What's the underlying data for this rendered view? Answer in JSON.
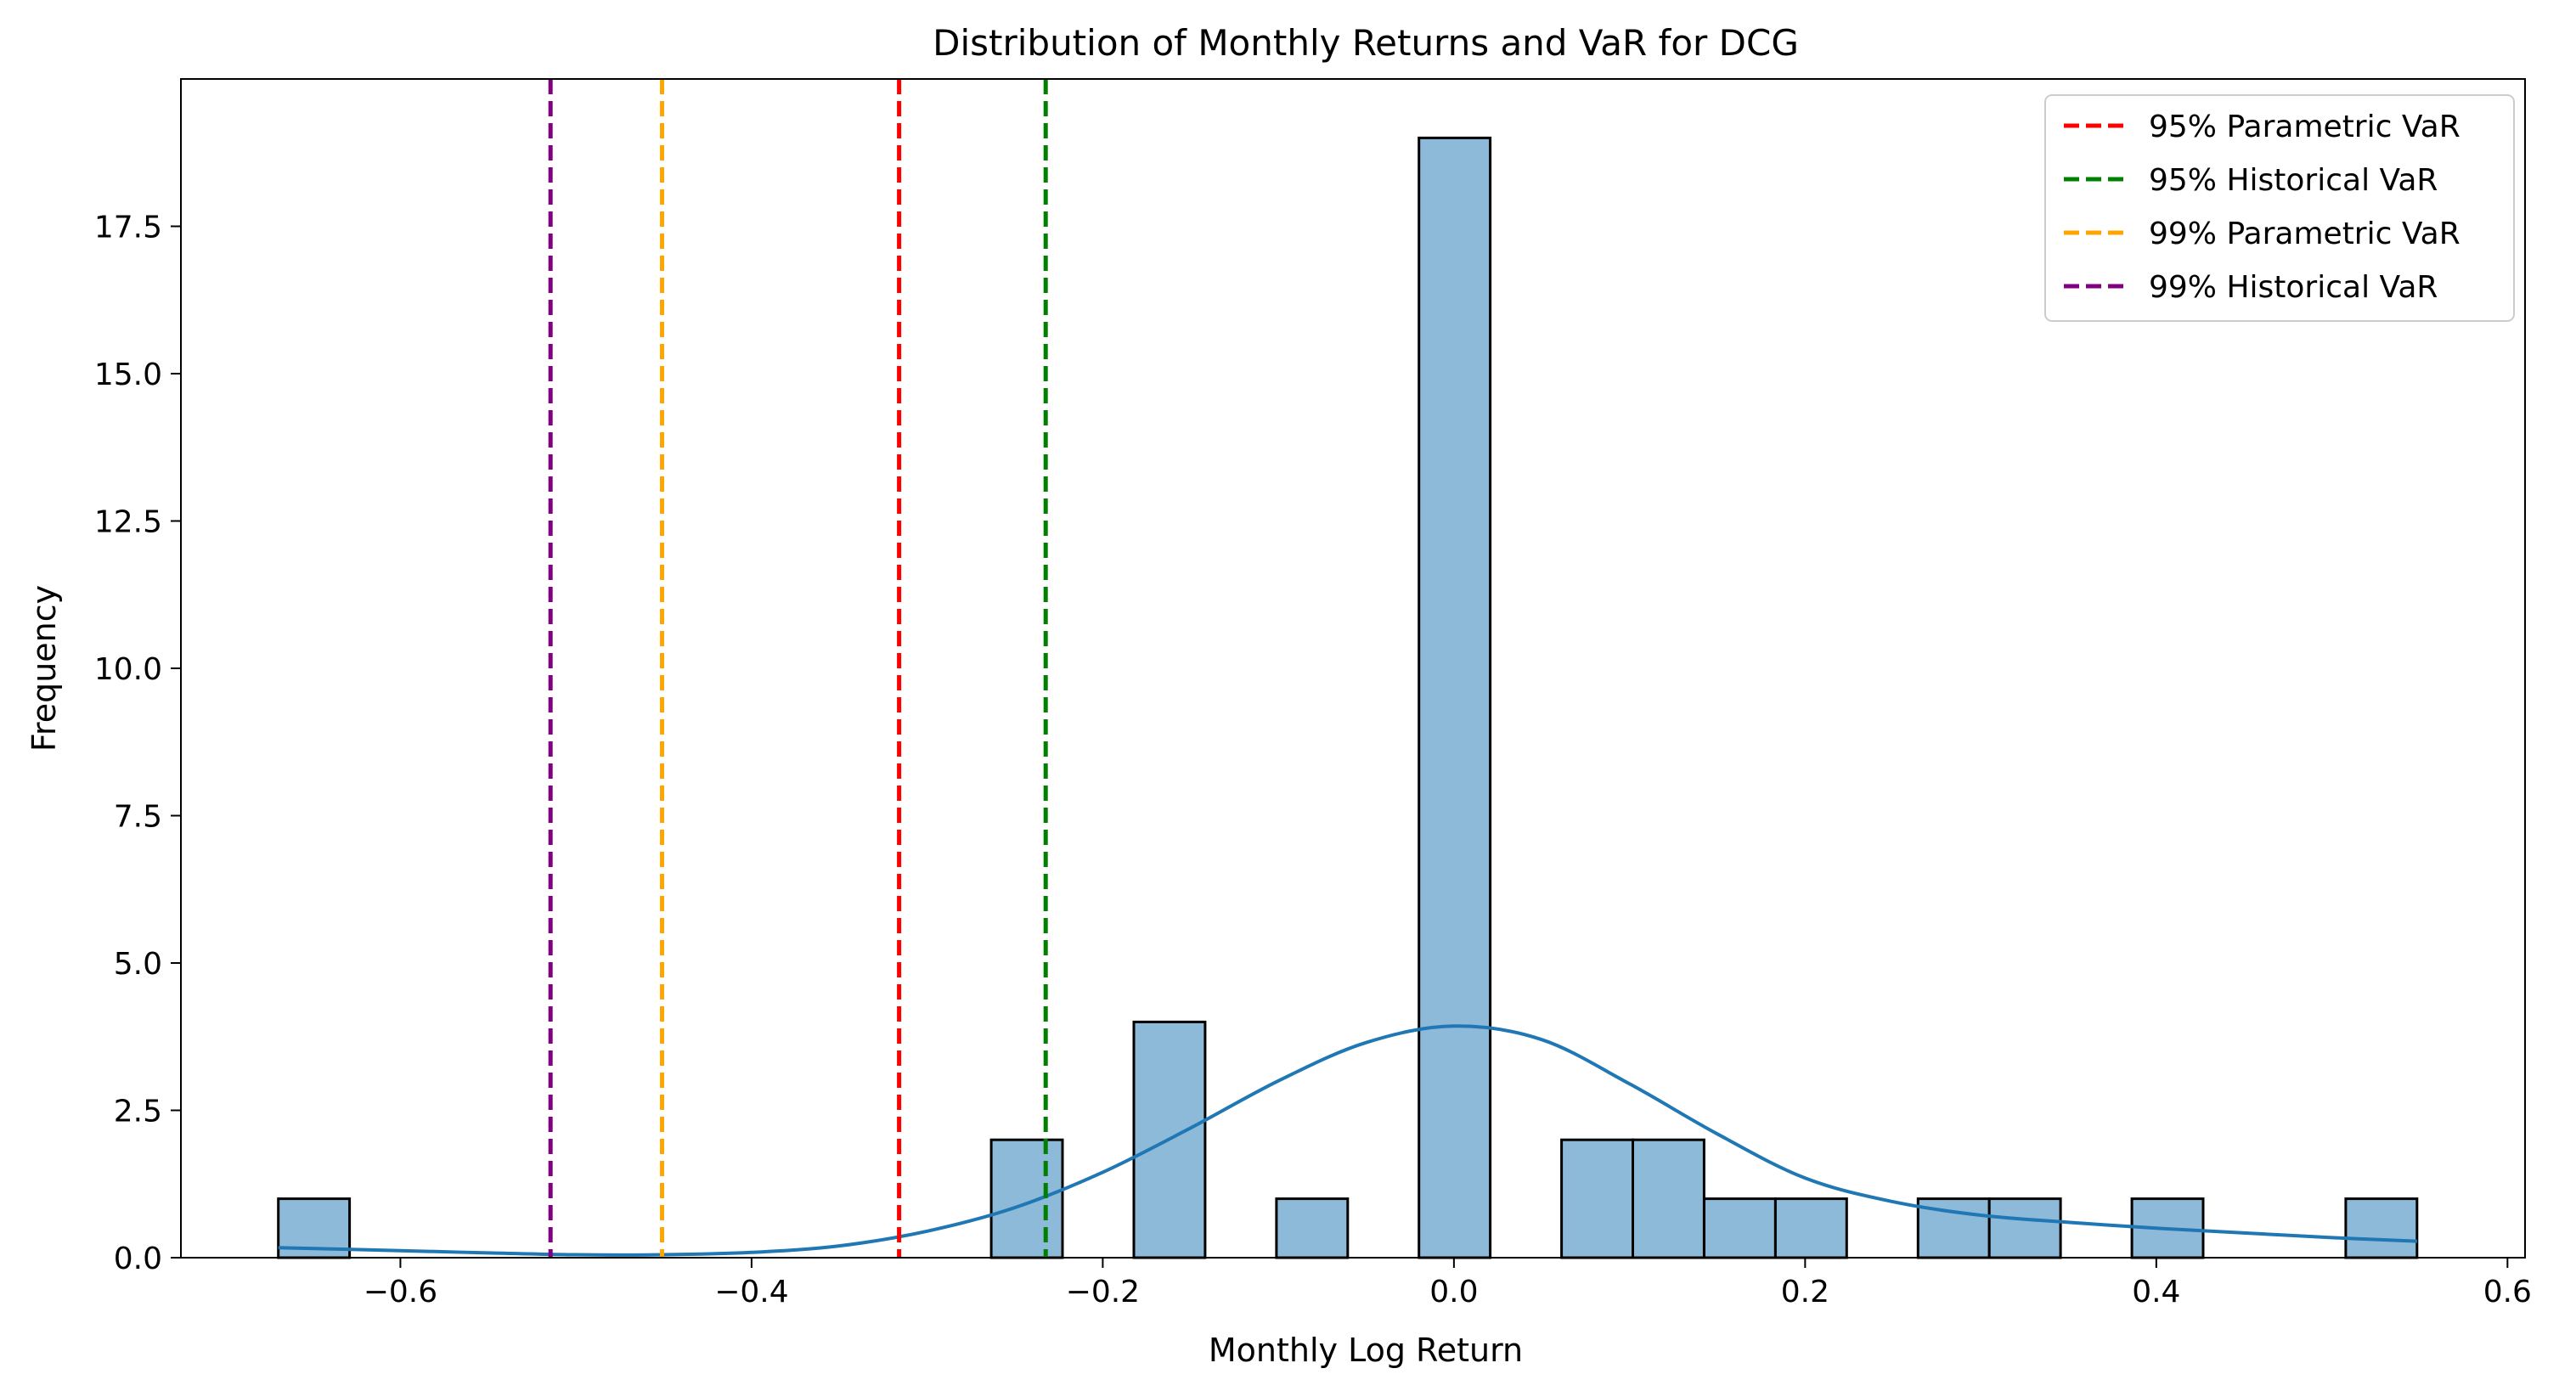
{
  "chart_data": {
    "type": "bar",
    "title": "Distribution of Monthly Returns and VaR for DCG",
    "xlabel": "Monthly Log Return",
    "ylabel": "Frequency",
    "xlim": [
      -0.725,
      0.61
    ],
    "ylim": [
      0,
      20.0
    ],
    "x_ticks": [
      {
        "value": -0.6,
        "label": "−0.6"
      },
      {
        "value": -0.4,
        "label": "−0.4"
      },
      {
        "value": -0.2,
        "label": "−0.2"
      },
      {
        "value": 0.0,
        "label": "0.0"
      },
      {
        "value": 0.2,
        "label": "0.2"
      },
      {
        "value": 0.4,
        "label": "0.4"
      },
      {
        "value": 0.6,
        "label": "0.6"
      }
    ],
    "y_ticks": [
      {
        "value": 0.0,
        "label": "0.0"
      },
      {
        "value": 2.5,
        "label": "2.5"
      },
      {
        "value": 5.0,
        "label": "5.0"
      },
      {
        "value": 7.5,
        "label": "7.5"
      },
      {
        "value": 10.0,
        "label": "10.0"
      },
      {
        "value": 12.5,
        "label": "12.5"
      },
      {
        "value": 15.0,
        "label": "15.0"
      },
      {
        "value": 17.5,
        "label": "17.5"
      }
    ],
    "bin_edges": [
      -0.6695,
      -0.6289,
      -0.5883,
      -0.5477,
      -0.5071,
      -0.4665,
      -0.4259,
      -0.3853,
      -0.3447,
      -0.3041,
      -0.2635,
      -0.2229,
      -0.1823,
      -0.1417,
      -0.1011,
      -0.0605,
      -0.0199,
      0.0207,
      0.0613,
      0.1019,
      0.1425,
      0.1831,
      0.2237,
      0.2643,
      0.3049,
      0.3455,
      0.3861,
      0.4267,
      0.4673,
      0.5079,
      0.5485
    ],
    "counts": [
      1,
      0,
      0,
      0,
      0,
      0,
      0,
      0,
      0,
      0,
      2,
      0,
      4,
      0,
      1,
      0,
      19,
      0,
      2,
      2,
      1,
      1,
      0,
      1,
      1,
      0,
      1,
      0,
      0,
      1
    ],
    "kde": {
      "x": [
        -0.6695,
        -0.6,
        -0.55,
        -0.5,
        -0.45,
        -0.4,
        -0.35,
        -0.3,
        -0.25,
        -0.2,
        -0.15,
        -0.1,
        -0.05,
        0.0,
        0.05,
        0.1,
        0.15,
        0.2,
        0.25,
        0.3,
        0.35,
        0.4,
        0.45,
        0.5,
        0.5485
      ],
      "y": [
        0.17,
        0.12,
        0.08,
        0.05,
        0.05,
        0.09,
        0.2,
        0.45,
        0.85,
        1.45,
        2.2,
        3.0,
        3.65,
        3.93,
        3.7,
        2.95,
        2.1,
        1.35,
        0.95,
        0.72,
        0.6,
        0.5,
        0.42,
        0.34,
        0.28
      ]
    },
    "vlines": [
      {
        "name": "95% Parametric VaR",
        "x": -0.316,
        "color": "#ff0000"
      },
      {
        "name": "95% Historical VaR",
        "x": -0.2325,
        "color": "#008000"
      },
      {
        "name": "99% Parametric VaR",
        "x": -0.451,
        "color": "#ffa500"
      },
      {
        "name": "99% Historical VaR",
        "x": -0.5145,
        "color": "#800080"
      }
    ],
    "bar_color": "#8ebad9",
    "bar_edge_color": "#000000",
    "kde_color": "#1f77b4",
    "grid": false,
    "legend_position": "top-right"
  }
}
